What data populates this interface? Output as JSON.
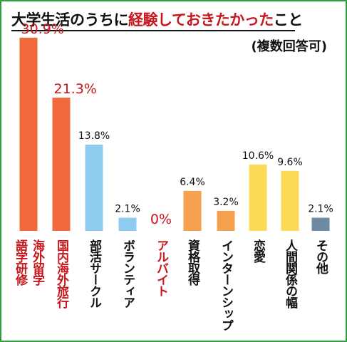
{
  "title": {
    "prefix": "大学生活のうちに",
    "highlight": "経験しておきたかった",
    "suffix": "こと"
  },
  "note": "(複数回答可)",
  "colors": {
    "frame": "#2e9e3f",
    "red_label": "#c8161d",
    "black_label": "#111111"
  },
  "chart_data": {
    "type": "bar",
    "categories": [
      "語学研修",
      "海外留学",
      "国内海外旅行",
      "部活サークル",
      "ボランティア",
      "アルバイト",
      "資格取得",
      "インターンシップ",
      "恋愛",
      "人間関係の幅",
      "その他"
    ],
    "bars": [
      {
        "label": "30.9%",
        "value": 30.9,
        "color": "#f0683c",
        "categories": [
          "語学研修",
          "海外留学"
        ],
        "label_color": "#c8161d",
        "label_size": 19
      },
      {
        "label": "21.3%",
        "value": 21.3,
        "color": "#f0683c",
        "categories": [
          "国内海外旅行"
        ],
        "label_color": "#c8161d",
        "label_size": 19
      },
      {
        "label": "13.8%",
        "value": 13.8,
        "color": "#8ecbee",
        "categories": [
          "部活サークル"
        ],
        "label_color": "#111111",
        "label_size": 14
      },
      {
        "label": "2.1%",
        "value": 2.1,
        "color": "#8ecbee",
        "categories": [
          "ボランティア"
        ],
        "label_color": "#111111",
        "label_size": 14
      },
      {
        "label": "0%",
        "value": 0,
        "color": "#f0683c",
        "categories": [
          "アルバイト"
        ],
        "label_color": "#c8161d",
        "label_size": 19
      },
      {
        "label": "6.4%",
        "value": 6.4,
        "color": "#f6a150",
        "categories": [
          "資格取得"
        ],
        "label_color": "#111111",
        "label_size": 14
      },
      {
        "label": "3.2%",
        "value": 3.2,
        "color": "#f6a150",
        "categories": [
          "インターンシップ"
        ],
        "label_color": "#111111",
        "label_size": 14
      },
      {
        "label": "10.6%",
        "value": 10.6,
        "color": "#fcd957",
        "categories": [
          "恋愛"
        ],
        "label_color": "#111111",
        "label_size": 14
      },
      {
        "label": "9.6%",
        "value": 9.6,
        "color": "#fcd957",
        "categories": [
          "人間関係の幅"
        ],
        "label_color": "#111111",
        "label_size": 14
      },
      {
        "label": "2.1%",
        "value": 2.1,
        "color": "#6e8aa3",
        "categories": [
          "その他"
        ],
        "label_color": "#111111",
        "label_size": 14
      }
    ],
    "category_colors": [
      "#c8161d",
      "#c8161d",
      "#c8161d",
      "#111111",
      "#111111",
      "#c8161d",
      "#111111",
      "#111111",
      "#111111",
      "#111111",
      "#111111"
    ],
    "ylim": [
      0,
      31
    ]
  }
}
